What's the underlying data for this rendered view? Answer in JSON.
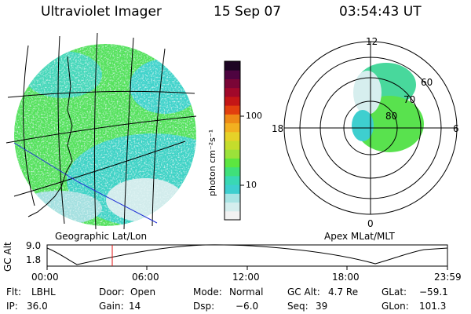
{
  "header": {
    "title": "Ultraviolet Imager",
    "date": "15 Sep 07",
    "time": "03:54:43 UT"
  },
  "geo_panel": {
    "label": "Geographic Lat/Lon"
  },
  "polar_panel": {
    "label": "Apex MLat/MLT",
    "mlt_labels": {
      "top": "12",
      "right": "6",
      "bottom": "0",
      "left": "18"
    },
    "mlat_labels": [
      "60",
      "70",
      "80"
    ]
  },
  "colorbar": {
    "unit_label": "photon cm⁻²s⁻¹",
    "tick_labels": [
      "100",
      "10"
    ],
    "colors": [
      "#f2f2f2",
      "#d4eeee",
      "#a8e4e4",
      "#3ecfcf",
      "#39d8b4",
      "#3fe07a",
      "#5ce640",
      "#9be23a",
      "#c4dd2c",
      "#e6d228",
      "#f2b020",
      "#ee8a16",
      "#e2400e",
      "#c41616",
      "#a1082a",
      "#7a0536",
      "#4e0440",
      "#1e0524"
    ]
  },
  "altitude_plot": {
    "ylabel": "GC Alt",
    "y_ticks": [
      "9.0",
      "1.8"
    ],
    "x_ticks": [
      "00:00",
      "06:00",
      "12:00",
      "18:00",
      "23:59"
    ]
  },
  "info": {
    "row1": [
      {
        "key": "Flt:",
        "value": "LBHL"
      },
      {
        "key": "Door:",
        "value": "Open"
      },
      {
        "key": "Mode:",
        "value": "Normal"
      },
      {
        "key": "GC Alt:",
        "value": "4.7 Re"
      },
      {
        "key": "GLat:",
        "value": "−59.1"
      }
    ],
    "row2": [
      {
        "key": "IP:",
        "value": "36.0"
      },
      {
        "key": "Gain:",
        "value": "14"
      },
      {
        "key": "Dsp:",
        "value": "−6.0"
      },
      {
        "key": "Seq:",
        "value": "39"
      },
      {
        "key": "GLon:",
        "value": "101.3"
      }
    ]
  }
}
